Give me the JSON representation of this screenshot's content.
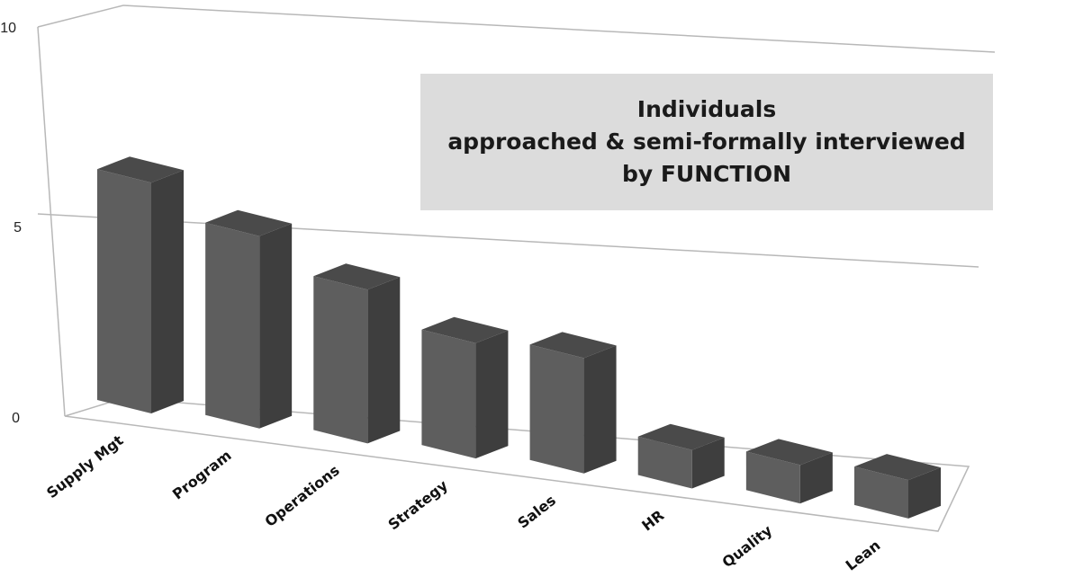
{
  "chart_data": {
    "type": "bar",
    "title_lines": [
      "Individuals",
      "approached & semi-formally interviewed",
      "by FUNCTION"
    ],
    "categories": [
      "Supply Mgt",
      "Program",
      "Operations",
      "Strategy",
      "Sales",
      "HR",
      "Quality",
      "Lean"
    ],
    "values": [
      6,
      5,
      4,
      3,
      3,
      1,
      1,
      1
    ],
    "ylim": [
      0,
      10
    ],
    "yticks": [
      "0",
      "5",
      "10"
    ],
    "grid": true,
    "legend": "none",
    "xlabel": "",
    "ylabel": "",
    "colors": {
      "bar_front": "#5e5e5e",
      "bar_side": "#3e3e3e",
      "bar_top": "#4a4a4a",
      "grid": "#b8b8b8",
      "title_bg": "#dcdcdc"
    }
  }
}
